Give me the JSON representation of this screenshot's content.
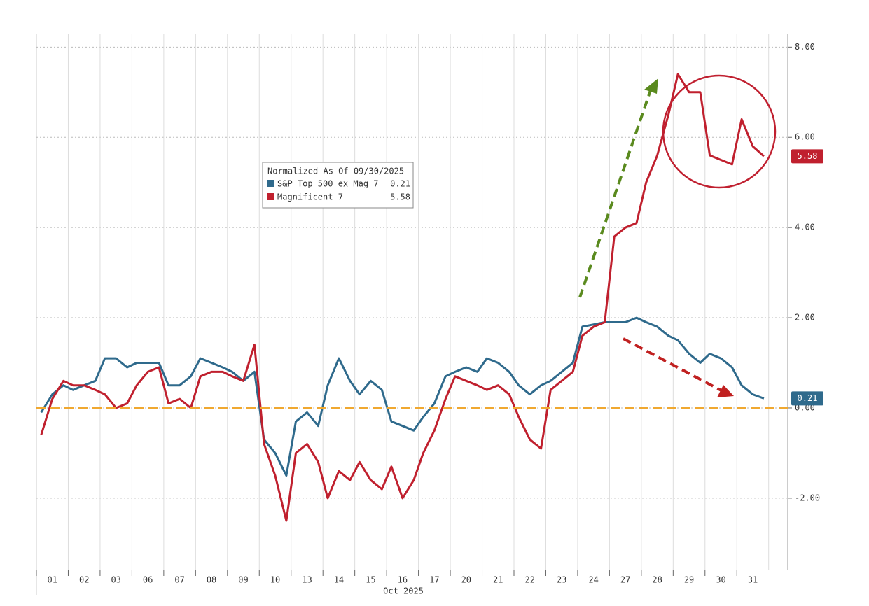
{
  "chart_data": {
    "type": "line",
    "legend_title": "Normalized As Of 09/30/2025",
    "x_label": "Oct 2025",
    "x": [
      0.15,
      0.5,
      0.85,
      1.15,
      1.5,
      1.85,
      2.15,
      2.5,
      2.85,
      3.15,
      3.5,
      3.85,
      4.15,
      4.5,
      4.85,
      5.15,
      5.5,
      5.85,
      6.15,
      6.5,
      6.85,
      7.15,
      7.5,
      7.85,
      8.15,
      8.5,
      8.85,
      9.15,
      9.5,
      9.85,
      10.15,
      10.5,
      10.85,
      11.15,
      11.5,
      11.85,
      12.15,
      12.5,
      12.85,
      13.15,
      13.5,
      13.85,
      14.15,
      14.5,
      14.85,
      15.15,
      15.5,
      15.85,
      16.15,
      16.5,
      16.85,
      17.15,
      17.5,
      17.85,
      18.15,
      18.5,
      18.85,
      19.15,
      19.5,
      19.85,
      20.15,
      20.5,
      20.85,
      21.15,
      21.5,
      21.85,
      22.15,
      22.5,
      22.85
    ],
    "xlim": [
      0,
      23.6
    ],
    "xticks": [
      {
        "value": 0.5,
        "label": "01"
      },
      {
        "value": 1.5,
        "label": "02"
      },
      {
        "value": 2.5,
        "label": "03"
      },
      {
        "value": 3.5,
        "label": "06"
      },
      {
        "value": 4.5,
        "label": "07"
      },
      {
        "value": 5.5,
        "label": "08"
      },
      {
        "value": 6.5,
        "label": "09"
      },
      {
        "value": 7.5,
        "label": "10"
      },
      {
        "value": 8.5,
        "label": "13"
      },
      {
        "value": 9.5,
        "label": "14"
      },
      {
        "value": 10.5,
        "label": "15"
      },
      {
        "value": 11.5,
        "label": "16"
      },
      {
        "value": 12.5,
        "label": "17"
      },
      {
        "value": 13.5,
        "label": "20"
      },
      {
        "value": 14.5,
        "label": "21"
      },
      {
        "value": 15.5,
        "label": "22"
      },
      {
        "value": 16.5,
        "label": "23"
      },
      {
        "value": 17.5,
        "label": "24"
      },
      {
        "value": 18.5,
        "label": "27"
      },
      {
        "value": 19.5,
        "label": "28"
      },
      {
        "value": 20.5,
        "label": "29"
      },
      {
        "value": 21.5,
        "label": "30"
      },
      {
        "value": 22.5,
        "label": "31"
      }
    ],
    "ylim": [
      -3.6,
      8.3
    ],
    "yticks": [
      {
        "value": -2,
        "label": "-2.00"
      },
      {
        "value": 0,
        "label": "0.00"
      },
      {
        "value": 2,
        "label": "2.00"
      },
      {
        "value": 4,
        "label": "4.00"
      },
      {
        "value": 6,
        "label": "6.00"
      },
      {
        "value": 8,
        "label": "8.00"
      }
    ],
    "grid": true,
    "reference_line": {
      "value": 0,
      "color": "#f0a830"
    },
    "series": [
      {
        "name": "S&P Top 500 ex Mag 7",
        "color": "#2f6a8c",
        "values": [
          -0.1,
          0.3,
          0.5,
          0.4,
          0.5,
          0.6,
          1.1,
          1.1,
          0.9,
          1.0,
          1.0,
          1.0,
          0.5,
          0.5,
          0.7,
          1.1,
          1.0,
          0.9,
          0.8,
          0.6,
          0.8,
          -0.7,
          -1.0,
          -1.5,
          -0.3,
          -0.1,
          -0.4,
          0.5,
          1.1,
          0.6,
          0.3,
          0.6,
          0.4,
          -0.3,
          -0.4,
          -0.5,
          -0.2,
          0.1,
          0.7,
          0.8,
          0.9,
          0.8,
          1.1,
          1.0,
          0.8,
          0.5,
          0.3,
          0.5,
          0.6,
          0.8,
          1.0,
          1.8,
          1.85,
          1.9,
          1.9,
          1.9,
          2.0,
          1.9,
          1.8,
          1.6,
          1.5,
          1.2,
          1.0,
          1.2,
          1.1,
          0.9,
          0.5,
          0.3,
          0.21
        ]
      },
      {
        "name": "Magnificent 7",
        "color": "#c0202e",
        "values": [
          -0.6,
          0.2,
          0.6,
          0.5,
          0.5,
          0.4,
          0.3,
          0.0,
          0.1,
          0.5,
          0.8,
          0.9,
          0.1,
          0.2,
          0.0,
          0.7,
          0.8,
          0.8,
          0.7,
          0.6,
          1.4,
          -0.8,
          -1.5,
          -2.5,
          -1.0,
          -0.8,
          -1.2,
          -2.0,
          -1.4,
          -1.6,
          -1.2,
          -1.6,
          -1.8,
          -1.3,
          -2.0,
          -1.6,
          -1.0,
          -0.5,
          0.2,
          0.7,
          0.6,
          0.5,
          0.4,
          0.5,
          0.3,
          -0.2,
          -0.7,
          -0.9,
          0.4,
          0.6,
          0.8,
          1.6,
          1.8,
          1.9,
          3.8,
          4.0,
          4.1,
          5.0,
          5.6,
          6.5,
          7.4,
          7.0,
          7.0,
          5.6,
          5.5,
          5.4,
          6.4,
          5.8,
          5.58
        ]
      }
    ]
  }
}
